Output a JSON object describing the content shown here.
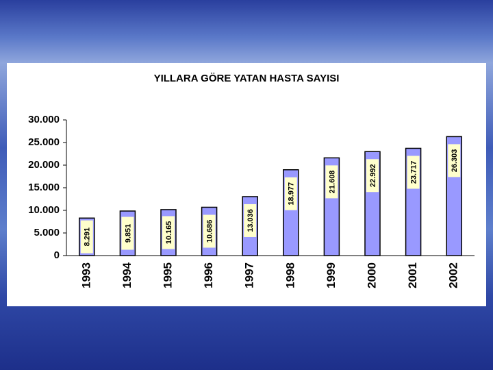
{
  "chart_data": {
    "type": "bar",
    "title": "YILLARA GÖRE YATAN HASTA SAYISI",
    "categories": [
      "1993",
      "1994",
      "1995",
      "1996",
      "1997",
      "1998",
      "1999",
      "2000",
      "2001",
      "2002"
    ],
    "values": [
      8291,
      9851,
      10165,
      10686,
      13036,
      18977,
      21608,
      22992,
      23717,
      26303
    ],
    "value_labels": [
      "8.291",
      "9.851",
      "10.165",
      "10.686",
      "13.036",
      "18.977",
      "21.608",
      "22.992",
      "23.717",
      "26.303"
    ],
    "color": "#9999ff",
    "ylim": [
      0,
      30000
    ],
    "yticks": [
      0,
      {
        "value": 5000,
        "label": "5.000"
      },
      {
        "value": 10000,
        "label": "10.000"
      },
      {
        "value": 15000,
        "label": "15.000"
      },
      {
        "value": 20000,
        "label": "20.000"
      },
      {
        "value": 25000,
        "label": "25.000"
      },
      {
        "value": 30000,
        "label": "30.000"
      }
    ],
    "grid": false
  }
}
